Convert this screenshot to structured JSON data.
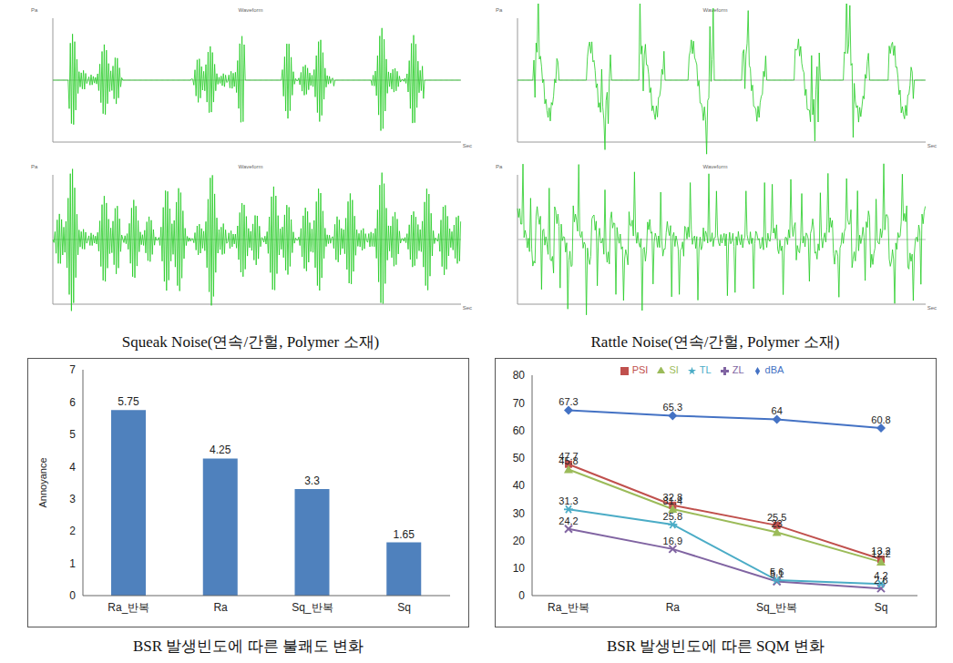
{
  "waveforms": {
    "title": "Waveform",
    "y_unit": "Pa",
    "x_unit": "Sec",
    "panels": [
      {
        "caption": "Squeak Noise(연속/간헐, Polymer 소재)"
      },
      {
        "caption": "Rattle Noise(연속/간헐, Polymer 소재)"
      }
    ]
  },
  "chart_data": [
    {
      "type": "bar",
      "caption": "BSR 발생빈도에 따른 불쾌도 변화",
      "y_label": "Annoyance",
      "categories": [
        "Ra_반복",
        "Ra",
        "Sq_반복",
        "Sq"
      ],
      "values": [
        5.75,
        4.25,
        3.3,
        1.65
      ],
      "color": "#4f81bd",
      "ylim": [
        0,
        7
      ],
      "yticks": [
        0,
        1,
        2,
        3,
        4,
        5,
        6,
        7
      ],
      "data_labels": true,
      "grid": false
    },
    {
      "type": "line",
      "caption": "BSR 발생빈도에 따른 SQM 변화",
      "categories": [
        "Ra_반복",
        "Ra",
        "Sq_반복",
        "Sq"
      ],
      "series": [
        {
          "name": "dBA",
          "color": "#4472c4",
          "marker": "diamond",
          "values": [
            67.3,
            65.3,
            64,
            60.8
          ]
        },
        {
          "name": "PSI",
          "color": "#c0504d",
          "marker": "square",
          "values": [
            47.7,
            32.8,
            25.5,
            13.2
          ]
        },
        {
          "name": "SI",
          "color": "#9bbb59",
          "marker": "triangle",
          "values": [
            45.8,
            31.4,
            23,
            12.2
          ]
        },
        {
          "name": "ZL",
          "color": "#8064a2",
          "marker": "x",
          "values": [
            24.2,
            16.9,
            5.1,
            2.6
          ]
        },
        {
          "name": "TL",
          "color": "#4bacc6",
          "marker": "star",
          "values": [
            31.3,
            25.8,
            5.6,
            4.2
          ]
        }
      ],
      "ylim": [
        0,
        80
      ],
      "yticks": [
        0,
        10,
        20,
        30,
        40,
        50,
        60,
        70,
        80
      ],
      "legend": "top",
      "data_labels": true,
      "grid": false
    }
  ]
}
